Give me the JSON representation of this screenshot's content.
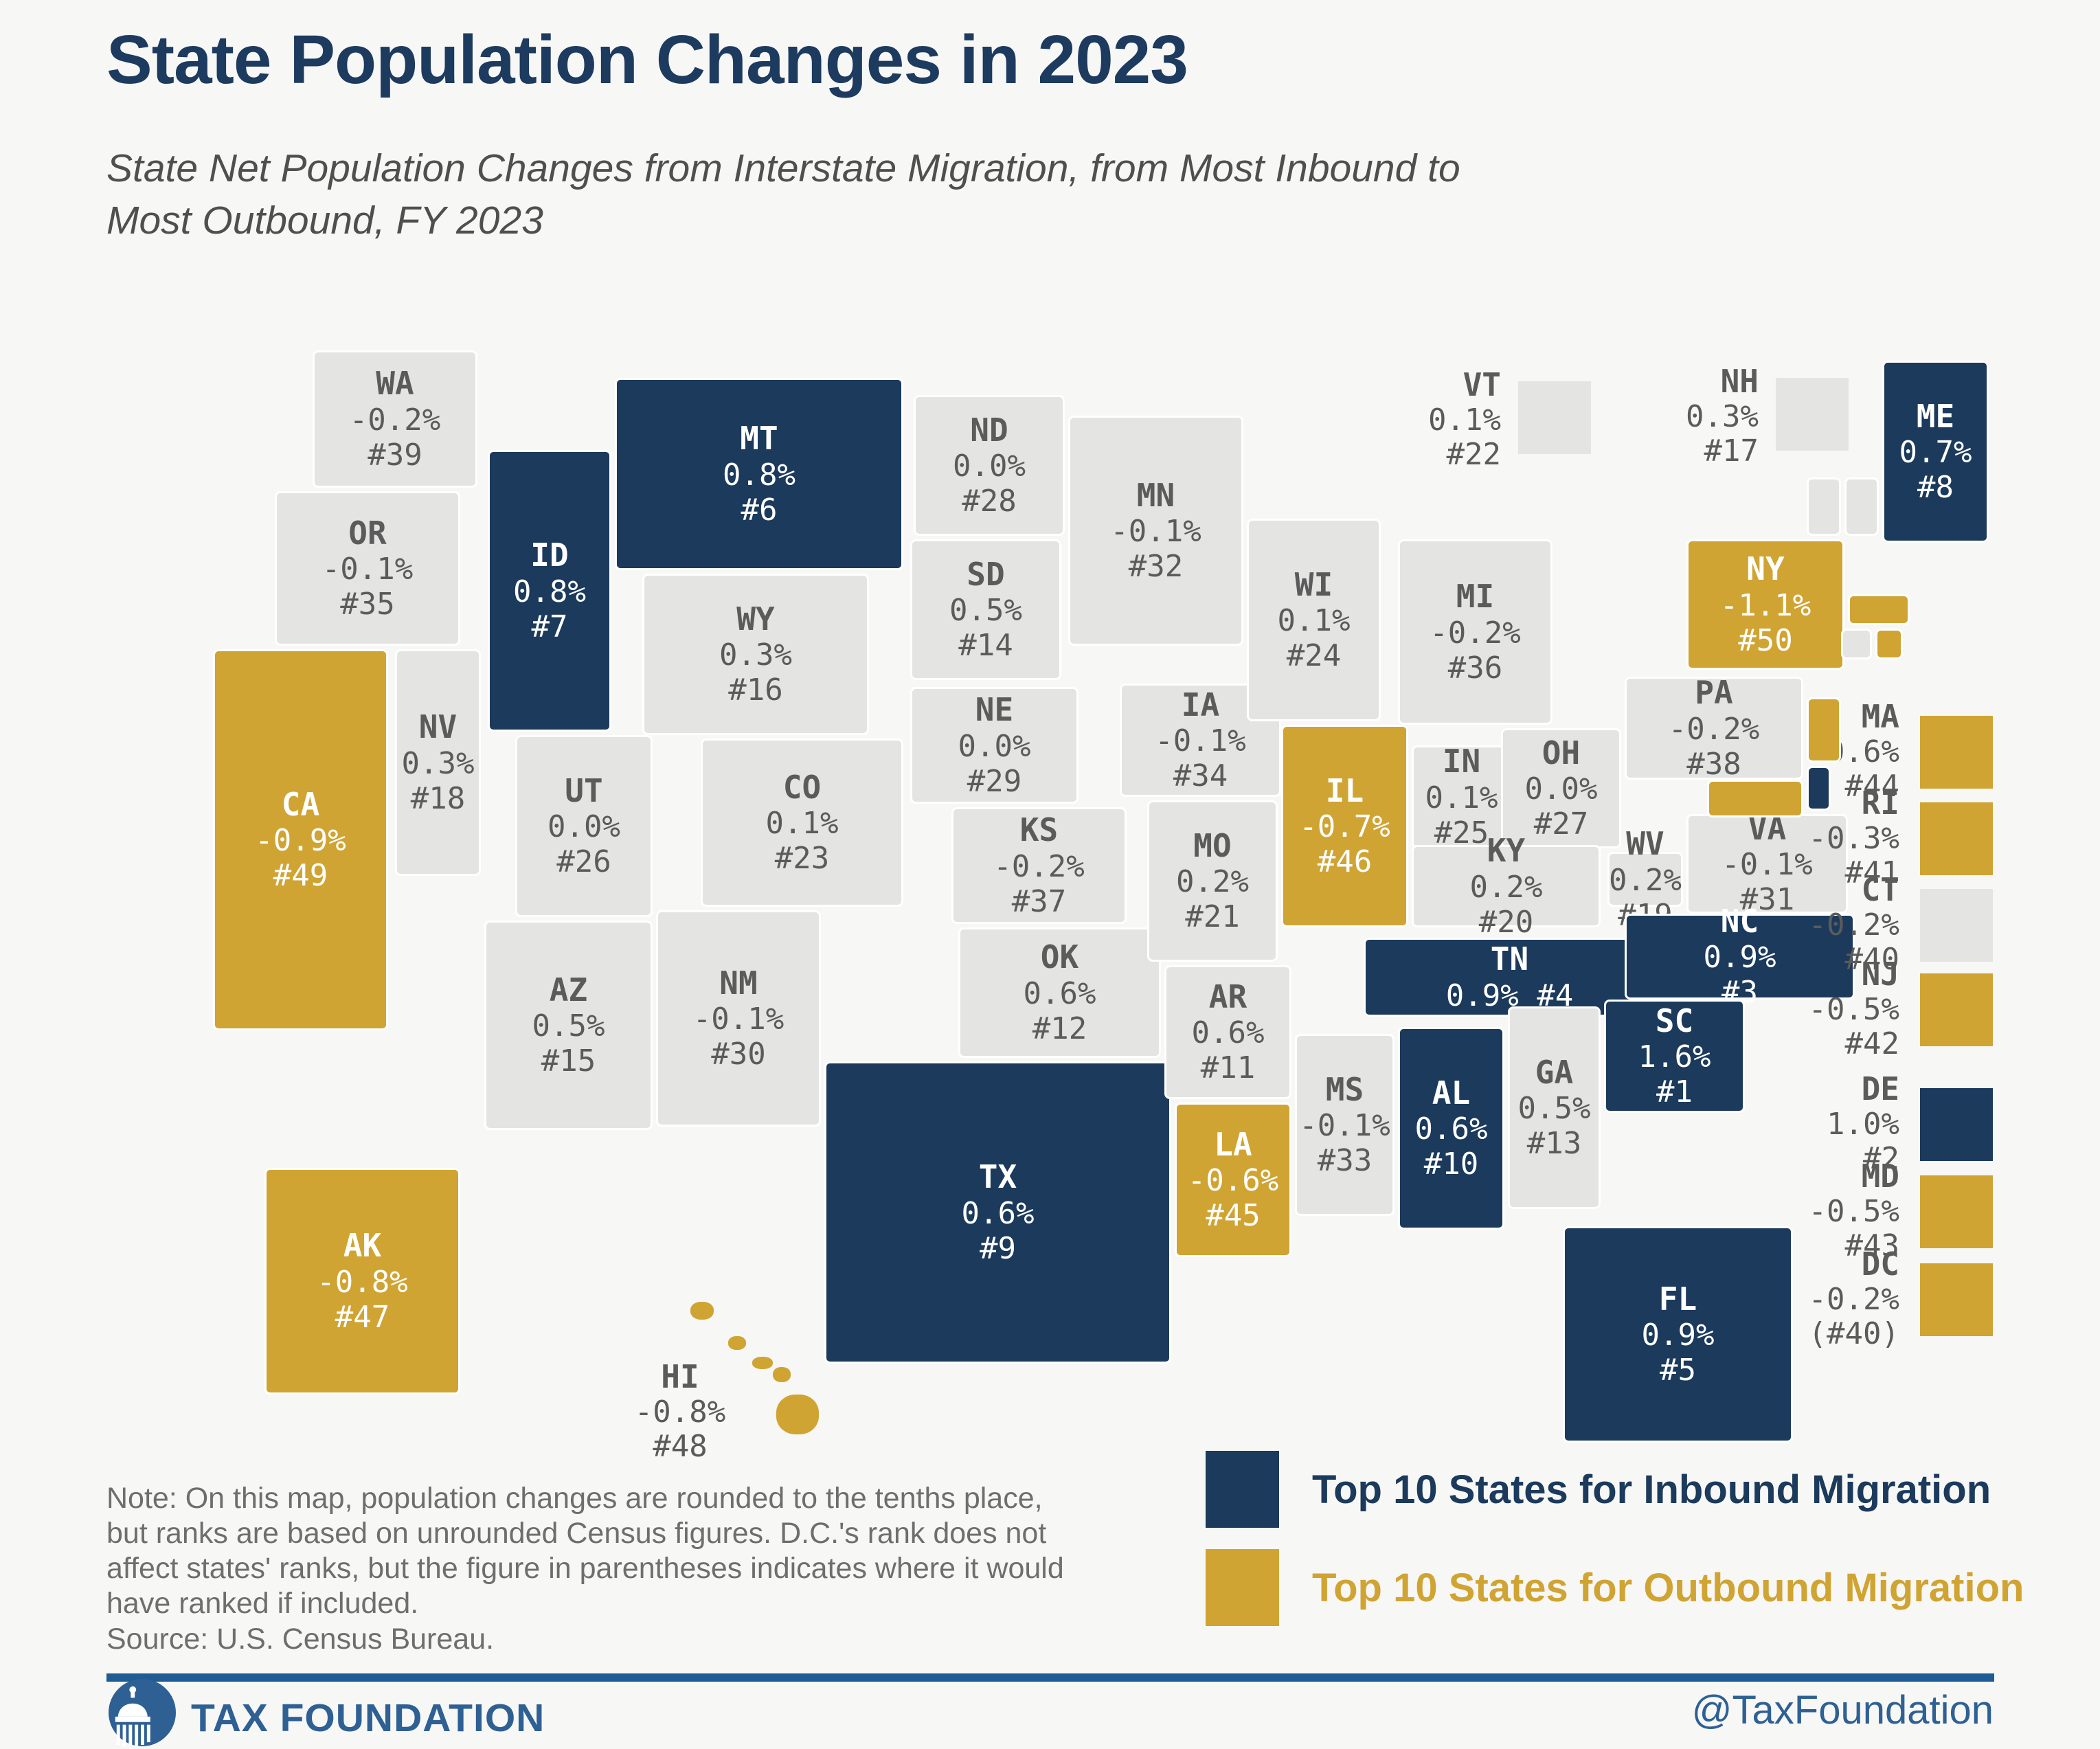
{
  "header": {
    "title": "State Population Changes in 2023",
    "subtitle_lines": [
      "State Net Population Changes from Interstate Migration, from Most Inbound to",
      "Most Outbound, FY 2023"
    ]
  },
  "colors": {
    "inbound": "#1b3a5c",
    "outbound": "#d0a433",
    "neutral": "#e4e4e3",
    "map_text_gray": "#5b5b5b",
    "map_text_light": "#ffffff"
  },
  "map": {
    "states": [
      {
        "abbr": "WA",
        "value": "-0.2%",
        "rank": "#39",
        "group": "neutral"
      },
      {
        "abbr": "OR",
        "value": "-0.1%",
        "rank": "#35",
        "group": "neutral"
      },
      {
        "abbr": "CA",
        "value": "-0.9%",
        "rank": "#49",
        "group": "outbound"
      },
      {
        "abbr": "NV",
        "value": "0.3%",
        "rank": "#18",
        "group": "neutral"
      },
      {
        "abbr": "ID",
        "value": "0.8%",
        "rank": "#7",
        "group": "inbound"
      },
      {
        "abbr": "MT",
        "value": "0.8%",
        "rank": "#6",
        "group": "inbound"
      },
      {
        "abbr": "WY",
        "value": "0.3%",
        "rank": "#16",
        "group": "neutral"
      },
      {
        "abbr": "UT",
        "value": "0.0%",
        "rank": "#26",
        "group": "neutral"
      },
      {
        "abbr": "CO",
        "value": "0.1%",
        "rank": "#23",
        "group": "neutral"
      },
      {
        "abbr": "AZ",
        "value": "0.5%",
        "rank": "#15",
        "group": "neutral"
      },
      {
        "abbr": "NM",
        "value": "-0.1%",
        "rank": "#30",
        "group": "neutral"
      },
      {
        "abbr": "ND",
        "value": "0.0%",
        "rank": "#28",
        "group": "neutral"
      },
      {
        "abbr": "SD",
        "value": "0.5%",
        "rank": "#14",
        "group": "neutral"
      },
      {
        "abbr": "NE",
        "value": "0.0%",
        "rank": "#29",
        "group": "neutral"
      },
      {
        "abbr": "KS",
        "value": "-0.2%",
        "rank": "#37",
        "group": "neutral"
      },
      {
        "abbr": "OK",
        "value": "0.6%",
        "rank": "#12",
        "group": "neutral"
      },
      {
        "abbr": "TX",
        "value": "0.6%",
        "rank": "#9",
        "group": "inbound"
      },
      {
        "abbr": "MN",
        "value": "-0.1%",
        "rank": "#32",
        "group": "neutral"
      },
      {
        "abbr": "IA",
        "value": "-0.1%",
        "rank": "#34",
        "group": "neutral"
      },
      {
        "abbr": "MO",
        "value": "0.2%",
        "rank": "#21",
        "group": "neutral"
      },
      {
        "abbr": "AR",
        "value": "0.6%",
        "rank": "#11",
        "group": "neutral"
      },
      {
        "abbr": "LA",
        "value": "-0.6%",
        "rank": "#45",
        "group": "outbound"
      },
      {
        "abbr": "WI",
        "value": "0.1%",
        "rank": "#24",
        "group": "neutral"
      },
      {
        "abbr": "IL",
        "value": "-0.7%",
        "rank": "#46",
        "group": "outbound"
      },
      {
        "abbr": "MS",
        "value": "-0.1%",
        "rank": "#33",
        "group": "neutral"
      },
      {
        "abbr": "MI",
        "value": "-0.2%",
        "rank": "#36",
        "group": "neutral"
      },
      {
        "abbr": "IN",
        "value": "0.1%",
        "rank": "#25",
        "group": "neutral"
      },
      {
        "abbr": "OH",
        "value": "0.0%",
        "rank": "#27",
        "group": "neutral"
      },
      {
        "abbr": "KY",
        "value": "0.2%",
        "rank": "#20",
        "group": "neutral"
      },
      {
        "abbr": "TN",
        "value": "0.9%",
        "rank": "#4",
        "group": "inbound"
      },
      {
        "abbr": "WV",
        "value": "0.2%",
        "rank": "#19",
        "group": "neutral"
      },
      {
        "abbr": "VA",
        "value": "-0.1%",
        "rank": "#31",
        "group": "neutral"
      },
      {
        "abbr": "PA",
        "value": "-0.2%",
        "rank": "#38",
        "group": "neutral"
      },
      {
        "abbr": "NY",
        "value": "-1.1%",
        "rank": "#50",
        "group": "outbound"
      },
      {
        "abbr": "NC",
        "value": "0.9%",
        "rank": "#3",
        "group": "inbound"
      },
      {
        "abbr": "SC",
        "value": "1.6%",
        "rank": "#1",
        "group": "inbound"
      },
      {
        "abbr": "GA",
        "value": "0.5%",
        "rank": "#13",
        "group": "neutral"
      },
      {
        "abbr": "AL",
        "value": "0.6%",
        "rank": "#10",
        "group": "inbound"
      },
      {
        "abbr": "FL",
        "value": "0.9%",
        "rank": "#5",
        "group": "inbound"
      },
      {
        "abbr": "ME",
        "value": "0.7%",
        "rank": "#8",
        "group": "inbound"
      },
      {
        "abbr": "VT",
        "value": "0.1%",
        "rank": "#22",
        "group": "neutral"
      },
      {
        "abbr": "NH",
        "value": "0.3%",
        "rank": "#17",
        "group": "neutral"
      },
      {
        "abbr": "MA",
        "value": "-0.6%",
        "rank": "#44",
        "group": "outbound"
      },
      {
        "abbr": "RI",
        "value": "-0.3%",
        "rank": "#41",
        "group": "outbound"
      },
      {
        "abbr": "CT",
        "value": "-0.2%",
        "rank": "#40",
        "group": "neutral"
      },
      {
        "abbr": "NJ",
        "value": "-0.5%",
        "rank": "#42",
        "group": "outbound"
      },
      {
        "abbr": "DE",
        "value": "1.0%",
        "rank": "#2",
        "group": "inbound"
      },
      {
        "abbr": "MD",
        "value": "-0.5%",
        "rank": "#43",
        "group": "outbound"
      },
      {
        "abbr": "DC",
        "value": "-0.2%",
        "rank": "(#40)",
        "group": "outbound"
      },
      {
        "abbr": "AK",
        "value": "-0.8%",
        "rank": "#47",
        "group": "outbound"
      },
      {
        "abbr": "HI",
        "value": "-0.8%",
        "rank": "#48",
        "group": "outbound"
      }
    ]
  },
  "legend": {
    "items": [
      {
        "label": "Top 10 States for Inbound Migration",
        "group": "inbound"
      },
      {
        "label": "Top 10 States for Outbound Migration",
        "group": "outbound"
      }
    ]
  },
  "note": {
    "lines": [
      "Note: On this map, population changes are rounded to the tenths place,",
      "but ranks are based on unrounded Census figures. D.C.'s rank does not",
      "affect states' ranks, but the figure in parentheses indicates where it would",
      "have ranked if included."
    ],
    "source": "Source: U.S. Census Bureau."
  },
  "footer": {
    "brand": "TAX FOUNDATION",
    "handle": "@TaxFoundation"
  }
}
